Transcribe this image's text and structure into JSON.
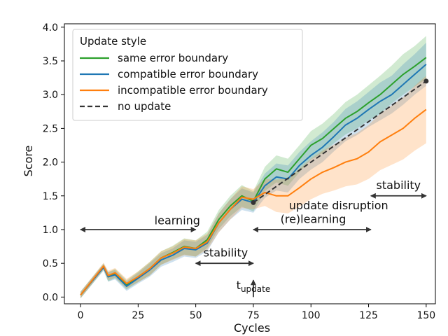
{
  "chart_data": {
    "type": "line",
    "xlabel": "Cycles",
    "ylabel": "Score",
    "xlim": [
      -7,
      154
    ],
    "ylim": [
      -0.1,
      4.05
    ],
    "xticks": [
      0,
      25,
      50,
      75,
      100,
      125,
      150
    ],
    "yticks": [
      0.0,
      0.5,
      1.0,
      1.5,
      2.0,
      2.5,
      3.0,
      3.5,
      4.0
    ],
    "ytick_labels": [
      "0.0",
      "0.5",
      "1.0",
      "1.5",
      "2.0",
      "2.5",
      "3.0",
      "3.5",
      "4.0"
    ],
    "grid": false,
    "legend": {
      "title": "Update style",
      "position": "top-left",
      "entries": [
        {
          "label": "same error boundary",
          "color": "#2ca02c",
          "style": "solid"
        },
        {
          "label": "compatible error boundary",
          "color": "#1f77b4",
          "style": "solid"
        },
        {
          "label": "incompatible error boundary",
          "color": "#ff7f0e",
          "style": "solid"
        },
        {
          "label": "no update",
          "color": "#333333",
          "style": "dashed"
        }
      ]
    },
    "series": [
      {
        "name": "same error boundary",
        "color": "#2ca02c",
        "x": [
          0,
          10,
          12,
          15,
          20,
          25,
          30,
          35,
          40,
          45,
          50,
          55,
          60,
          65,
          70,
          75,
          80,
          85,
          90,
          95,
          100,
          105,
          110,
          115,
          120,
          125,
          130,
          135,
          140,
          145,
          150
        ],
        "y": [
          0.03,
          0.45,
          0.3,
          0.35,
          0.18,
          0.3,
          0.42,
          0.58,
          0.66,
          0.75,
          0.72,
          0.85,
          1.15,
          1.35,
          1.5,
          1.42,
          1.75,
          1.9,
          1.85,
          2.05,
          2.25,
          2.35,
          2.5,
          2.65,
          2.75,
          2.88,
          3.0,
          3.15,
          3.3,
          3.42,
          3.55
        ],
        "band": [
          0.05,
          0.05,
          0.07,
          0.07,
          0.07,
          0.08,
          0.1,
          0.1,
          0.1,
          0.12,
          0.12,
          0.12,
          0.14,
          0.15,
          0.16,
          0.15,
          0.18,
          0.2,
          0.2,
          0.2,
          0.21,
          0.22,
          0.22,
          0.24,
          0.25,
          0.26,
          0.28,
          0.28,
          0.3,
          0.3,
          0.32
        ]
      },
      {
        "name": "compatible error boundary",
        "color": "#1f77b4",
        "x": [
          0,
          10,
          12,
          15,
          20,
          25,
          30,
          35,
          40,
          45,
          50,
          55,
          60,
          65,
          70,
          75,
          80,
          85,
          90,
          95,
          100,
          105,
          110,
          115,
          120,
          125,
          130,
          135,
          140,
          145,
          150
        ],
        "y": [
          0.03,
          0.44,
          0.3,
          0.33,
          0.16,
          0.28,
          0.4,
          0.55,
          0.62,
          0.72,
          0.7,
          0.8,
          1.1,
          1.3,
          1.45,
          1.4,
          1.65,
          1.78,
          1.75,
          1.95,
          2.1,
          2.22,
          2.38,
          2.55,
          2.65,
          2.78,
          2.9,
          3.0,
          3.15,
          3.3,
          3.45
        ],
        "band": [
          0.05,
          0.05,
          0.07,
          0.07,
          0.07,
          0.08,
          0.1,
          0.1,
          0.1,
          0.12,
          0.12,
          0.12,
          0.14,
          0.15,
          0.16,
          0.15,
          0.18,
          0.2,
          0.2,
          0.2,
          0.21,
          0.22,
          0.22,
          0.24,
          0.25,
          0.26,
          0.28,
          0.28,
          0.3,
          0.3,
          0.32
        ]
      },
      {
        "name": "incompatible error boundary",
        "color": "#ff7f0e",
        "x": [
          0,
          10,
          12,
          15,
          20,
          25,
          30,
          35,
          40,
          45,
          50,
          55,
          60,
          65,
          70,
          75,
          80,
          85,
          90,
          95,
          100,
          105,
          110,
          115,
          120,
          125,
          130,
          135,
          140,
          145,
          150
        ],
        "y": [
          0.03,
          0.46,
          0.32,
          0.36,
          0.2,
          0.3,
          0.42,
          0.58,
          0.65,
          0.74,
          0.72,
          0.82,
          1.1,
          1.3,
          1.48,
          1.45,
          1.55,
          1.5,
          1.5,
          1.62,
          1.75,
          1.85,
          1.92,
          2.0,
          2.05,
          2.15,
          2.3,
          2.4,
          2.5,
          2.65,
          2.78
        ],
        "band": [
          0.05,
          0.05,
          0.07,
          0.07,
          0.07,
          0.08,
          0.1,
          0.1,
          0.1,
          0.12,
          0.12,
          0.12,
          0.14,
          0.15,
          0.16,
          0.15,
          0.2,
          0.24,
          0.26,
          0.28,
          0.3,
          0.32,
          0.34,
          0.36,
          0.38,
          0.4,
          0.42,
          0.44,
          0.46,
          0.48,
          0.5
        ]
      },
      {
        "name": "no update",
        "color": "#333333",
        "dashed": true,
        "x": [
          75,
          150
        ],
        "y": [
          1.4,
          3.2
        ],
        "endpoints": true
      }
    ],
    "annotations": [
      {
        "id": "learning",
        "text": "learning",
        "x": 42,
        "y": 1.08,
        "arrow": [
          0,
          50,
          1.0
        ]
      },
      {
        "id": "stability1",
        "text": "stability",
        "x": 63,
        "y": 0.6,
        "arrow": [
          50,
          75,
          0.5
        ]
      },
      {
        "id": "update-disruption",
        "text": "update disruption",
        "x": 112,
        "y": 1.3
      },
      {
        "id": "relearning",
        "text": "(re)learning",
        "x": 101,
        "y": 1.1,
        "arrow": [
          75,
          126,
          1.0
        ]
      },
      {
        "id": "stability2",
        "text": "stability",
        "x": 138,
        "y": 1.6,
        "arrow": [
          126,
          150,
          1.5
        ]
      },
      {
        "id": "t-update",
        "text": "t",
        "sub": "update",
        "x": 75,
        "y": 0.12,
        "vertical_arrow": [
          75,
          0.0,
          0.25
        ]
      }
    ]
  }
}
